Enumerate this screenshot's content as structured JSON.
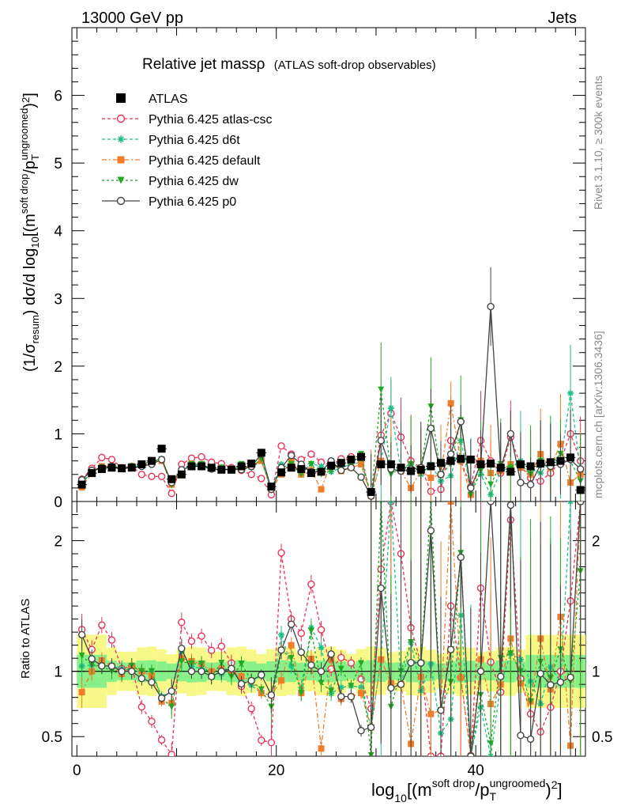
{
  "header": {
    "left": "13000 GeV pp",
    "right": "Jets"
  },
  "side_labels": {
    "rivet": "Rivet 3.1.10, ≥ 300k events",
    "mcplots": "mcplots.cern.ch [arXiv:1306.3436]"
  },
  "chart_data": {
    "type": "line",
    "title": "Relative jet massρ",
    "subtitle": "(ATLAS soft-drop observables)",
    "ylabel_main": "(1/σ_resum) dσ/d log10[(m^soft drop/pT^ungroomed)^2]",
    "ylabel_ratio": "Ratio to ATLAS",
    "xlabel": "log10[(m^soft drop/pT^ungroomed)^2]",
    "xlim": [
      -0.5,
      51
    ],
    "ylim_main": [
      0,
      7
    ],
    "ylim_ratio": [
      0.35,
      2.3
    ],
    "x_ticks": [
      "0",
      "20",
      "40"
    ],
    "y_ticks_main": [
      "0",
      "1",
      "2",
      "3",
      "4",
      "5",
      "6"
    ],
    "y_ticks_ratio": [
      "0.5",
      "1",
      "2"
    ],
    "x": [
      0.5,
      1.5,
      2.5,
      3.5,
      4.5,
      5.5,
      6.5,
      7.5,
      8.5,
      9.5,
      10.5,
      11.5,
      12.5,
      13.5,
      14.5,
      15.5,
      16.5,
      17.5,
      18.5,
      19.5,
      20.5,
      21.5,
      22.5,
      23.5,
      24.5,
      25.5,
      26.5,
      27.5,
      28.5,
      29.5,
      30.5,
      31.5,
      32.5,
      33.5,
      34.5,
      35.5,
      36.5,
      37.5,
      38.5,
      39.5,
      40.5,
      41.5,
      42.5,
      43.5,
      44.5,
      45.5,
      46.5,
      47.5,
      48.5,
      49.5,
      50.5
    ],
    "atlas": [
      0.25,
      0.42,
      0.48,
      0.5,
      0.49,
      0.5,
      0.55,
      0.6,
      0.78,
      0.33,
      0.4,
      0.52,
      0.52,
      0.5,
      0.47,
      0.47,
      0.52,
      0.56,
      0.72,
      0.22,
      0.43,
      0.5,
      0.48,
      0.42,
      0.44,
      0.53,
      0.57,
      0.62,
      0.66,
      0.14,
      0.55,
      0.55,
      0.5,
      0.45,
      0.47,
      0.52,
      0.57,
      0.6,
      0.63,
      0.62,
      0.55,
      0.56,
      0.5,
      0.44,
      0.55,
      0.52,
      0.56,
      0.58,
      0.6,
      0.65,
      0.17
    ],
    "series": [
      {
        "name": "Pythia 6.425 atlas-csc",
        "color": "#e8335a",
        "marker": "open-circle",
        "dash": "4,3",
        "values": [
          0.33,
          0.49,
          0.65,
          0.62,
          0.5,
          0.52,
          0.4,
          0.37,
          0.37,
          0.12,
          0.55,
          0.64,
          0.66,
          0.58,
          0.56,
          0.5,
          0.46,
          0.4,
          0.34,
          0.1,
          0.82,
          0.7,
          0.62,
          0.7,
          0.58,
          0.54,
          0.63,
          0.66,
          0.62,
          0.1,
          0.98,
          1.3,
          0.95,
          0.6,
          0.5,
          0.15,
          0.18,
          0.9,
          0.6,
          0.22,
          0.9,
          0.6,
          0.42,
          0.95,
          0.52,
          0.35,
          0.3,
          0.42,
          0.6,
          1.0,
          0.6
        ]
      },
      {
        "name": "Pythia 6.425 d6t",
        "color": "#1fbf8a",
        "marker": "star",
        "dash": "4,3",
        "values": [
          0.26,
          0.44,
          0.5,
          0.52,
          0.5,
          0.5,
          0.55,
          0.6,
          0.63,
          0.28,
          0.46,
          0.54,
          0.53,
          0.5,
          0.46,
          0.48,
          0.48,
          0.5,
          0.6,
          0.18,
          0.55,
          0.52,
          0.42,
          0.56,
          0.52,
          0.44,
          0.5,
          0.55,
          0.58,
          0.08,
          0.6,
          1.38,
          0.45,
          0.55,
          0.4,
          0.55,
          0.3,
          0.38,
          0.9,
          0.2,
          0.4,
          0.1,
          0.45,
          0.5,
          0.6,
          0.48,
          0.42,
          0.6,
          0.55,
          1.6,
          0.45
        ]
      },
      {
        "name": "Pythia 6.425 default",
        "color": "#f07d2a",
        "marker": "square",
        "dash": "6,3,2,3",
        "values": [
          0.21,
          0.42,
          0.52,
          0.52,
          0.48,
          0.52,
          0.55,
          0.58,
          0.6,
          0.25,
          0.44,
          0.56,
          0.55,
          0.5,
          0.48,
          0.47,
          0.5,
          0.52,
          0.6,
          0.18,
          0.4,
          0.6,
          0.4,
          0.46,
          0.18,
          0.58,
          0.45,
          0.5,
          0.55,
          0.08,
          0.6,
          0.5,
          0.45,
          0.2,
          0.45,
          0.35,
          0.4,
          1.45,
          0.6,
          0.1,
          0.6,
          0.42,
          0.45,
          0.55,
          0.5,
          0.4,
          0.7,
          0.5,
          0.85,
          0.28,
          0.4
        ]
      },
      {
        "name": "Pythia 6.425 dw",
        "color": "#22a822",
        "marker": "triangle-down",
        "dash": "3,3",
        "values": [
          0.28,
          0.44,
          0.5,
          0.5,
          0.48,
          0.52,
          0.55,
          0.6,
          0.62,
          0.24,
          0.43,
          0.55,
          0.55,
          0.48,
          0.5,
          0.45,
          0.55,
          0.52,
          0.62,
          0.16,
          0.5,
          0.55,
          0.4,
          0.55,
          0.4,
          0.45,
          0.58,
          0.55,
          0.7,
          0.05,
          1.65,
          0.4,
          0.5,
          0.55,
          0.5,
          1.4,
          0.4,
          0.55,
          1.2,
          0.1,
          0.45,
          0.25,
          0.55,
          0.5,
          0.55,
          0.4,
          0.6,
          0.55,
          0.7,
          0.6,
          0.3
        ]
      },
      {
        "name": "Pythia 6.425 p0",
        "color": "#444444",
        "marker": "open-circle",
        "dash": "",
        "values": [
          0.32,
          0.46,
          0.5,
          0.52,
          0.49,
          0.5,
          0.52,
          0.55,
          0.62,
          0.28,
          0.47,
          0.52,
          0.52,
          0.48,
          0.47,
          0.48,
          0.47,
          0.52,
          0.7,
          0.18,
          0.5,
          0.68,
          0.55,
          0.44,
          0.44,
          0.6,
          0.46,
          0.5,
          0.36,
          0.08,
          0.9,
          0.48,
          0.45,
          0.48,
          0.5,
          1.08,
          0.4,
          0.7,
          1.18,
          0.2,
          0.55,
          2.88,
          0.48,
          1.0,
          0.28,
          0.25,
          0.55,
          0.52,
          0.55,
          0.62,
          0.48
        ]
      }
    ],
    "band_colors": {
      "inner": "#88f088",
      "outer": "#f8f888"
    },
    "legend": [
      "ATLAS",
      "Pythia 6.425 atlas-csc",
      "Pythia 6.425 d6t",
      "Pythia 6.425 default",
      "Pythia 6.425 dw",
      "Pythia 6.425 p0"
    ]
  }
}
